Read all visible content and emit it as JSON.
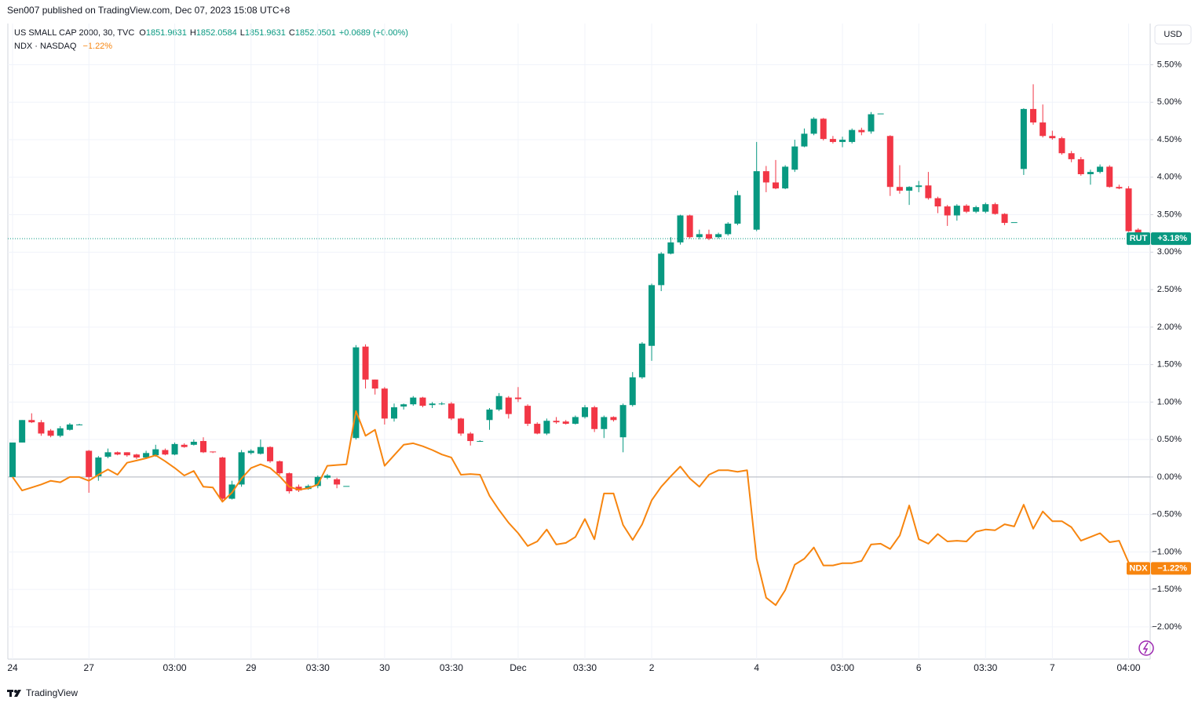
{
  "header": {
    "attribution": "Sen007 published on TradingView.com, Dec 07, 2023 15:08 UTC+8",
    "symbol": "US SMALL CAP 2000, 30, TVC",
    "ohlc": [
      {
        "key": "O",
        "value": "1851.9631"
      },
      {
        "key": "H",
        "value": "1852.0584"
      },
      {
        "key": "L",
        "value": "1851.9631"
      },
      {
        "key": "C",
        "value": "1852.0501"
      }
    ],
    "change": "+0.0689 (+0.00%)",
    "compare_symbol": "NDX · NASDAQ",
    "compare_change": "−1.22%"
  },
  "currency_button": "USD",
  "footer": "TradingView",
  "chart_data": {
    "type": "candlestick",
    "categories": [
      "24",
      null,
      null,
      null,
      null,
      null,
      null,
      null,
      "27",
      null,
      null,
      null,
      null,
      null,
      null,
      null,
      null,
      "03:00",
      null,
      null,
      null,
      null,
      null,
      null,
      null,
      "29",
      null,
      null,
      null,
      null,
      null,
      null,
      "03:30",
      null,
      null,
      null,
      null,
      null,
      null,
      "30",
      null,
      null,
      null,
      null,
      null,
      null,
      "03:30",
      null,
      null,
      null,
      null,
      null,
      null,
      "Dec",
      null,
      null,
      null,
      null,
      null,
      null,
      "03:30",
      null,
      null,
      null,
      null,
      null,
      null,
      "2",
      null,
      null,
      null,
      null,
      null,
      null,
      null,
      null,
      null,
      null,
      "4",
      null,
      null,
      null,
      null,
      null,
      null,
      null,
      null,
      "03:00",
      null,
      null,
      null,
      null,
      null,
      null,
      null,
      "6",
      null,
      null,
      null,
      null,
      null,
      null,
      "03:30",
      null,
      null,
      null,
      null,
      null,
      null,
      "7",
      null,
      null,
      null,
      null,
      null,
      null,
      null,
      "04:00",
      null
    ],
    "series": [
      {
        "name": "RUT",
        "type": "candlestick",
        "up_color": "#089981",
        "down_color": "#f23645",
        "last_label": "+3.18%",
        "open": [
          0,
          0.46,
          0.76,
          0.73,
          0.62,
          0.55,
          0.63,
          0.7,
          0.35,
          0.01,
          0.27,
          0.33,
          0.33,
          0.3,
          0.26,
          0.29,
          0.36,
          0.3,
          0.43,
          0.43,
          0.48,
          0.34,
          0.26,
          -0.29,
          -0.1,
          0.32,
          0.31,
          0.4,
          0.21,
          0.05,
          -0.13,
          -0.16,
          -0.12,
          -0.01,
          -0.03,
          -0.12,
          0.52,
          1.74,
          1.3,
          1.18,
          0.78,
          0.94,
          0.97,
          1.06,
          0.96,
          0.98,
          0.98,
          0.78,
          0.58,
          0.48,
          0.76,
          0.9,
          1.06,
          1.06,
          0.95,
          0.71,
          0.58,
          0.75,
          0.74,
          0.71,
          0.8,
          0.93,
          0.64,
          0.8,
          0.53,
          0.96,
          1.33,
          1.75,
          2.56,
          2.98,
          3.13,
          3.49,
          3.2,
          3.24,
          3.2,
          3.24,
          3.38,
          null,
          3.3,
          4.08,
          3.93,
          3.85,
          4.1,
          4.41,
          4.58,
          4.78,
          4.51,
          4.47,
          4.47,
          4.63,
          4.61,
          4.85,
          4.55,
          3.87,
          3.82,
          3.87,
          3.89,
          3.72,
          3.61,
          3.49,
          3.62,
          3.54,
          3.54,
          3.64,
          3.51,
          3.4,
          4.11,
          4.91,
          4.73,
          4.55,
          4.52,
          4.32,
          4.24,
          4.04,
          4.07,
          4.14,
          3.87,
          3.85,
          3.3
        ],
        "high": [
          0.46,
          0.76,
          0.85,
          0.76,
          0.64,
          0.68,
          0.72,
          0.71,
          0.36,
          0.28,
          0.38,
          0.34,
          0.33,
          0.31,
          0.35,
          0.43,
          0.38,
          0.46,
          0.45,
          0.5,
          0.53,
          0.34,
          0.27,
          -0.05,
          0.36,
          0.37,
          0.5,
          0.41,
          0.22,
          0.06,
          -0.1,
          -0.1,
          0.02,
          0.04,
          -0.01,
          -0.12,
          1.76,
          1.77,
          1.3,
          1.2,
          0.98,
          0.98,
          1.08,
          1.07,
          1.0,
          1.0,
          1.0,
          0.79,
          0.6,
          0.49,
          0.92,
          1.12,
          1.08,
          1.2,
          0.97,
          0.73,
          0.78,
          0.8,
          0.76,
          0.82,
          0.96,
          0.95,
          0.82,
          0.81,
          0.98,
          1.4,
          1.8,
          2.58,
          3.0,
          3.2,
          3.5,
          3.5,
          3.3,
          3.3,
          3.26,
          3.4,
          3.82,
          null,
          4.47,
          4.15,
          4.23,
          4.16,
          4.5,
          4.65,
          4.8,
          4.79,
          4.55,
          4.54,
          4.65,
          4.66,
          4.87,
          4.85,
          4.56,
          4.16,
          3.88,
          3.95,
          4.07,
          3.74,
          3.63,
          3.64,
          3.64,
          3.62,
          3.66,
          3.66,
          3.52,
          3.4,
          4.92,
          5.24,
          4.97,
          4.62,
          4.54,
          4.35,
          4.27,
          4.1,
          4.17,
          4.16,
          3.9,
          3.88,
          3.32
        ],
        "low": [
          0,
          0.46,
          0.72,
          0.55,
          0.53,
          0.53,
          0.62,
          0.69,
          -0.21,
          -0.05,
          0.25,
          0.29,
          0.27,
          0.24,
          0.24,
          0.27,
          0.29,
          0.29,
          0.39,
          0.42,
          0.32,
          0.32,
          -0.32,
          -0.3,
          -0.13,
          0.3,
          0.3,
          0.19,
          0.03,
          -0.22,
          -0.2,
          -0.17,
          -0.15,
          -0.03,
          -0.15,
          -0.12,
          0.5,
          1.18,
          1.1,
          0.7,
          0.74,
          0.9,
          0.95,
          0.93,
          0.92,
          0.96,
          0.76,
          0.55,
          0.42,
          0.47,
          0.63,
          0.88,
          0.78,
          1.0,
          0.68,
          0.57,
          0.56,
          0.71,
          0.7,
          0.7,
          0.78,
          0.6,
          0.52,
          0.74,
          0.33,
          0.94,
          1.31,
          1.55,
          2.48,
          2.97,
          3.1,
          3.18,
          3.17,
          3.16,
          3.18,
          3.22,
          3.36,
          null,
          3.28,
          3.8,
          3.84,
          3.84,
          4.07,
          4.4,
          4.56,
          4.49,
          4.45,
          4.4,
          4.45,
          4.56,
          4.58,
          4.85,
          3.75,
          3.78,
          3.63,
          3.8,
          3.7,
          3.52,
          3.35,
          3.42,
          3.52,
          3.52,
          3.52,
          3.5,
          3.36,
          3.4,
          4.03,
          4.7,
          4.53,
          4.5,
          4.3,
          4.2,
          4.02,
          3.9,
          4.05,
          3.86,
          3.84,
          3.27,
          3.16
        ],
        "close": [
          0.46,
          0.76,
          0.73,
          0.58,
          0.55,
          0.65,
          0.7,
          0.7,
          0,
          0.26,
          0.33,
          0.3,
          0.29,
          0.26,
          0.32,
          0.37,
          0.3,
          0.44,
          0.4,
          0.47,
          0.33,
          0.33,
          -0.29,
          -0.1,
          0.33,
          0.35,
          0.4,
          0.21,
          0.05,
          -0.19,
          -0.18,
          -0.12,
          0,
          0.02,
          -0.1,
          -0.12,
          1.73,
          1.3,
          1.18,
          0.78,
          0.93,
          0.97,
          1.06,
          0.95,
          0.98,
          0.98,
          0.78,
          0.58,
          0.48,
          0.48,
          0.9,
          1.08,
          0.84,
          1.04,
          0.71,
          0.58,
          0.75,
          0.73,
          0.71,
          0.8,
          0.93,
          0.64,
          0.8,
          0.76,
          0.96,
          1.33,
          1.78,
          2.56,
          2.98,
          3.13,
          3.49,
          3.2,
          3.24,
          3.18,
          3.24,
          3.38,
          3.76,
          null,
          4.08,
          3.93,
          3.85,
          4.14,
          4.41,
          4.58,
          4.78,
          4.51,
          4.47,
          4.5,
          4.63,
          4.6,
          4.84,
          4.85,
          3.87,
          3.82,
          3.87,
          3.89,
          3.72,
          3.61,
          3.49,
          3.62,
          3.54,
          3.6,
          3.64,
          3.51,
          3.39,
          3.4,
          4.91,
          4.73,
          4.55,
          4.52,
          4.32,
          4.24,
          4.04,
          4.07,
          4.14,
          3.87,
          3.85,
          3.28,
          3.18
        ]
      },
      {
        "name": "NDX",
        "type": "line",
        "color": "#f7850f",
        "last_label": "−1.22%",
        "values": [
          0,
          -0.18,
          -0.14,
          -0.1,
          -0.05,
          -0.07,
          0,
          0,
          -0.05,
          0.03,
          0.1,
          0.03,
          0.19,
          0.22,
          0.25,
          0.29,
          0.21,
          0.12,
          0.02,
          0.08,
          -0.13,
          -0.14,
          -0.33,
          -0.21,
          -0.02,
          0.12,
          0.17,
          0.12,
          0.01,
          -0.13,
          -0.17,
          -0.15,
          -0.1,
          0.15,
          0.16,
          0.17,
          0.88,
          0.55,
          0.63,
          0.15,
          0.29,
          0.43,
          0.45,
          0.41,
          0.36,
          0.3,
          0.26,
          0.03,
          0.04,
          0.03,
          -0.25,
          -0.44,
          -0.61,
          -0.75,
          -0.92,
          -0.86,
          -0.7,
          -0.9,
          -0.88,
          -0.8,
          -0.56,
          -0.83,
          -0.22,
          -0.22,
          -0.64,
          -0.84,
          -0.63,
          -0.31,
          -0.13,
          0.01,
          0.14,
          -0.02,
          -0.13,
          0.03,
          0.09,
          0.09,
          0.07,
          0.09,
          -1.09,
          -1.61,
          -1.71,
          -1.51,
          -1.17,
          -1.09,
          -0.94,
          -1.18,
          -1.18,
          -1.15,
          -1.15,
          -1.12,
          -0.9,
          -0.89,
          -0.96,
          -0.78,
          -0.38,
          -0.83,
          -0.89,
          -0.76,
          -0.86,
          -0.85,
          -0.86,
          -0.73,
          -0.7,
          -0.71,
          -0.63,
          -0.66,
          -0.37,
          -0.69,
          -0.46,
          -0.59,
          -0.59,
          -0.67,
          -0.85,
          -0.8,
          -0.75,
          -0.87,
          -0.85,
          -1.14,
          -1.22
        ]
      }
    ],
    "ylim": [
      -2.43,
      6.05
    ],
    "yticks": [
      {
        "value": 5.5,
        "label": "5.50%"
      },
      {
        "value": 5,
        "label": "5.00%"
      },
      {
        "value": 4.5,
        "label": "4.50%"
      },
      {
        "value": 4,
        "label": "4.00%"
      },
      {
        "value": 3.5,
        "label": "3.50%"
      },
      {
        "value": 3,
        "label": "3.00%"
      },
      {
        "value": 2.5,
        "label": "2.50%"
      },
      {
        "value": 2,
        "label": "2.00%"
      },
      {
        "value": 1.5,
        "label": "1.50%"
      },
      {
        "value": 1,
        "label": "1.00%"
      },
      {
        "value": 0.5,
        "label": "0.50%"
      },
      {
        "value": 0,
        "label": "0.00%"
      },
      {
        "value": -0.5,
        "label": "−0.50%"
      },
      {
        "value": -1,
        "label": "−1.00%"
      },
      {
        "value": -1.5,
        "label": "−1.50%"
      },
      {
        "value": -2,
        "label": "−2.00%"
      }
    ],
    "grid": true
  }
}
